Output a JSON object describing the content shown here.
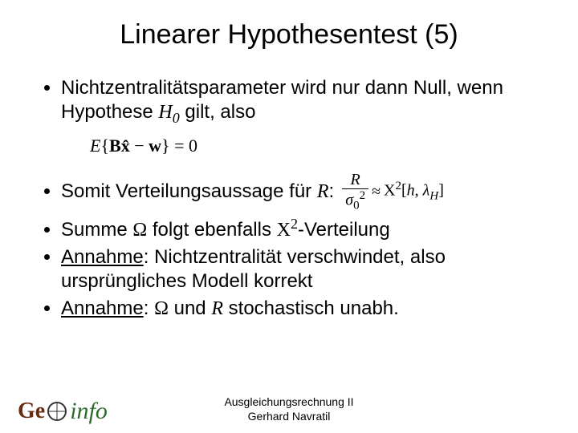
{
  "title": "Linearer Hypothesentest (5)",
  "bullets": {
    "b1_a": "Nichtzentralitätsparameter wird nur dann Null, wenn Hypothese ",
    "b1_H0": "H",
    "b1_H0_sub": "0",
    "b1_b": " gilt, also",
    "eq1_E": "E",
    "eq1_open": "{",
    "eq1_Bx": "Bx̂",
    "eq1_minus": " − ",
    "eq1_w": "w",
    "eq1_close": "}",
    "eq1_eq0": " = 0",
    "b2_a": "Somit Verteilungsaussage für ",
    "b2_R": "R",
    "b2_colon": ":",
    "eq2_R": "R",
    "eq2_sigma": "σ",
    "eq2_zero": "0",
    "eq2_two": "2",
    "eq2_approx": "≈",
    "eq2_chi": "Χ",
    "eq2_chi_sup": "2",
    "eq2_br_open": "[",
    "eq2_h": "h",
    "eq2_comma": ", ",
    "eq2_lambda": "λ",
    "eq2_lambda_sub": "H",
    "eq2_br_close": "]",
    "b3_a": "Summe ",
    "b3_omega": "Ω",
    "b3_b": " folgt ebenfalls ",
    "b3_chi": "Χ",
    "b3_chi_sup": "2",
    "b3_c": "-Verteilung",
    "b4_label": "Annahme",
    "b4_a": ": Nichtzentralität verschwindet, also ursprüngliches Modell korrekt",
    "b5_label": "Annahme",
    "b5_a": ": ",
    "b5_omega": "Ω",
    "b5_b": " und ",
    "b5_R": "R",
    "b5_c": " stochastisch unabh."
  },
  "footer": {
    "line1": "Ausgleichungsrechnung II",
    "line2": "Gerhard Navratil"
  },
  "logo": {
    "part1": "Ge",
    "part2": "info"
  }
}
